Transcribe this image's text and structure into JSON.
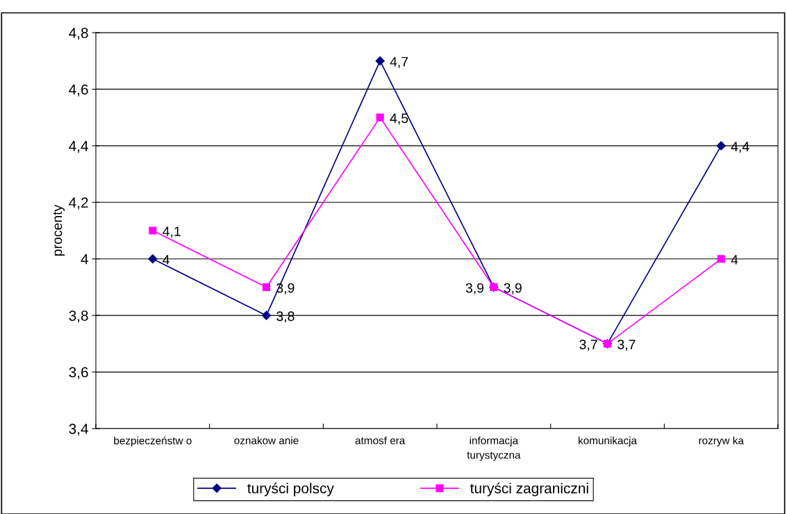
{
  "chart_data": {
    "type": "line",
    "ylabel": "procenty",
    "categories": [
      "bezpieczeństw o",
      "oznakow anie",
      "atmosf era",
      "informacja\nturystyczna",
      "komunikacja",
      "rozryw ka"
    ],
    "series": [
      {
        "name": "turyści polscy",
        "color": "#000080",
        "marker": "diamond",
        "values": [
          4,
          3.8,
          4.7,
          3.9,
          3.7,
          4.4
        ],
        "value_labels": [
          "4",
          "3,8",
          "4,7",
          "3,9",
          "3,7",
          "4,4"
        ]
      },
      {
        "name": "turyści zagraniczni",
        "color": "#ff00ff",
        "marker": "square",
        "values": [
          4.1,
          3.9,
          4.5,
          3.9,
          3.7,
          4
        ],
        "value_labels": [
          "4,1",
          "3,9",
          "4,5",
          "3,9",
          "3,7",
          "4"
        ]
      }
    ],
    "ylim": [
      3.4,
      4.8
    ],
    "yticks": [
      {
        "value": 3.4,
        "label": "3,4"
      },
      {
        "value": 3.6,
        "label": "3,6"
      },
      {
        "value": 3.8,
        "label": "3,8"
      },
      {
        "value": 4,
        "label": "4"
      },
      {
        "value": 4.2,
        "label": "4,2"
      },
      {
        "value": 4.4,
        "label": "4,4"
      },
      {
        "value": 4.6,
        "label": "4,6"
      },
      {
        "value": 4.8,
        "label": "4,8"
      }
    ],
    "grid": "y",
    "legend": "bottom"
  }
}
